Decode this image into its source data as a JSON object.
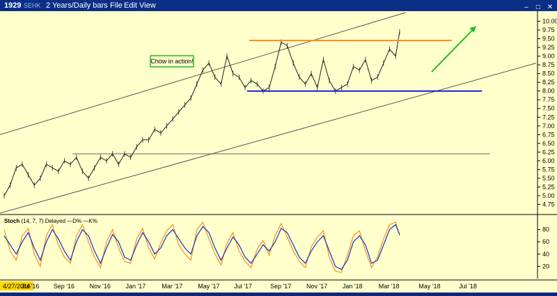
{
  "titlebar": {
    "symbol": "1929",
    "exchange": "SEHK",
    "period": "2 Years/Daily bars",
    "menus": [
      "File",
      "Edit",
      "View"
    ]
  },
  "window_controls": {
    "minimize": "–",
    "maximize": "□",
    "close": "✕"
  },
  "annotation": {
    "text": "Chow in action!"
  },
  "indicator": {
    "label": "Stoch",
    "params": "(14, 7, 7)",
    "delayed": "Delayed",
    "d_label": "D%",
    "k_label": "K%"
  },
  "colors": {
    "background": "#ffffcc",
    "price": "#1f1f1f",
    "resistance": "#ff8c1a",
    "support": "#1a1adb",
    "trend_arrow": "#22bb22",
    "channel": "#555555",
    "stoch_d": "#1133cc",
    "stoch_k": "#ff8c1a",
    "annotation_border": "#22bb22",
    "date_highlight": "#ffd800"
  },
  "chart_data": {
    "type": "line",
    "title": "",
    "x_labels": [
      "4/27/2016",
      "Jul '16",
      "Sep '16",
      "Nov '16",
      "Jan '17",
      "Mar '17",
      "May '17",
      "Jul '17",
      "Sep '17",
      "Nov '17",
      "Jan '18",
      "Mar '18",
      "May '18",
      "Jul '18"
    ],
    "price_axis": {
      "ylim": [
        4.5,
        10.25
      ],
      "ticks": [
        "10.00",
        "9.75",
        "9.50",
        "9.25",
        "9.00",
        "8.75",
        "8.50",
        "8.25",
        "8.00",
        "7.75",
        "7.50",
        "7.25",
        "7.00",
        "6.75",
        "6.50",
        "6.25",
        "6.00",
        "5.75",
        "5.50",
        "5.25",
        "5.00",
        "4.75"
      ]
    },
    "stoch_axis": {
      "ylim": [
        0,
        100
      ],
      "ticks": [
        "80",
        "60",
        "40",
        "20"
      ]
    },
    "levels": {
      "resistance": 9.45,
      "support": 8.0,
      "horizontal_line": 6.2
    },
    "series": [
      {
        "name": "Price",
        "points": [
          [
            0,
            5.0
          ],
          [
            3,
            5.3
          ],
          [
            6,
            5.8
          ],
          [
            9,
            5.9
          ],
          [
            12,
            5.6
          ],
          [
            15,
            5.3
          ],
          [
            18,
            5.5
          ],
          [
            21,
            5.9
          ],
          [
            24,
            5.8
          ],
          [
            27,
            5.7
          ],
          [
            30,
            6.0
          ],
          [
            33,
            5.9
          ],
          [
            36,
            6.1
          ],
          [
            39,
            5.7
          ],
          [
            42,
            5.5
          ],
          [
            45,
            5.8
          ],
          [
            48,
            6.1
          ],
          [
            51,
            6.0
          ],
          [
            54,
            6.2
          ],
          [
            57,
            5.9
          ],
          [
            60,
            6.2
          ],
          [
            63,
            6.1
          ],
          [
            66,
            6.4
          ],
          [
            69,
            6.6
          ],
          [
            72,
            6.6
          ],
          [
            75,
            6.9
          ],
          [
            78,
            6.8
          ],
          [
            81,
            7.0
          ],
          [
            84,
            7.2
          ],
          [
            87,
            7.4
          ],
          [
            90,
            7.6
          ],
          [
            93,
            7.8
          ],
          [
            96,
            8.2
          ],
          [
            99,
            8.6
          ],
          [
            102,
            8.8
          ],
          [
            105,
            8.4
          ],
          [
            108,
            8.2
          ],
          [
            111,
            9.0
          ],
          [
            114,
            8.5
          ],
          [
            117,
            8.4
          ],
          [
            120,
            8.1
          ],
          [
            123,
            8.3
          ],
          [
            126,
            8.2
          ],
          [
            129,
            8.0
          ],
          [
            132,
            8.1
          ],
          [
            135,
            8.7
          ],
          [
            138,
            9.4
          ],
          [
            141,
            9.3
          ],
          [
            144,
            8.8
          ],
          [
            147,
            8.4
          ],
          [
            150,
            8.2
          ],
          [
            153,
            8.5
          ],
          [
            156,
            8.1
          ],
          [
            159,
            8.9
          ],
          [
            162,
            8.3
          ],
          [
            165,
            8.0
          ],
          [
            168,
            8.1
          ],
          [
            171,
            8.2
          ],
          [
            174,
            8.7
          ],
          [
            177,
            8.6
          ],
          [
            180,
            8.9
          ],
          [
            183,
            8.3
          ],
          [
            186,
            8.4
          ],
          [
            189,
            8.8
          ],
          [
            192,
            9.2
          ],
          [
            195,
            9.0
          ],
          [
            197,
            9.7
          ]
        ]
      },
      {
        "name": "D%",
        "points": [
          [
            0,
            70
          ],
          [
            3,
            55
          ],
          [
            6,
            40
          ],
          [
            9,
            60
          ],
          [
            12,
            75
          ],
          [
            15,
            50
          ],
          [
            18,
            30
          ],
          [
            21,
            60
          ],
          [
            24,
            80
          ],
          [
            27,
            65
          ],
          [
            30,
            45
          ],
          [
            33,
            30
          ],
          [
            36,
            60
          ],
          [
            39,
            80
          ],
          [
            42,
            70
          ],
          [
            45,
            45
          ],
          [
            48,
            25
          ],
          [
            51,
            50
          ],
          [
            54,
            72
          ],
          [
            57,
            60
          ],
          [
            60,
            35
          ],
          [
            63,
            30
          ],
          [
            66,
            55
          ],
          [
            69,
            75
          ],
          [
            72,
            60
          ],
          [
            75,
            40
          ],
          [
            78,
            50
          ],
          [
            81,
            70
          ],
          [
            84,
            80
          ],
          [
            87,
            65
          ],
          [
            90,
            50
          ],
          [
            93,
            40
          ],
          [
            96,
            70
          ],
          [
            99,
            85
          ],
          [
            102,
            75
          ],
          [
            105,
            50
          ],
          [
            108,
            30
          ],
          [
            111,
            50
          ],
          [
            114,
            68
          ],
          [
            117,
            55
          ],
          [
            120,
            35
          ],
          [
            123,
            25
          ],
          [
            126,
            40
          ],
          [
            129,
            55
          ],
          [
            132,
            45
          ],
          [
            135,
            60
          ],
          [
            138,
            82
          ],
          [
            141,
            75
          ],
          [
            144,
            55
          ],
          [
            147,
            35
          ],
          [
            150,
            25
          ],
          [
            153,
            45
          ],
          [
            156,
            60
          ],
          [
            159,
            70
          ],
          [
            162,
            45
          ],
          [
            165,
            20
          ],
          [
            168,
            15
          ],
          [
            171,
            30
          ],
          [
            174,
            60
          ],
          [
            177,
            70
          ],
          [
            180,
            55
          ],
          [
            183,
            25
          ],
          [
            186,
            30
          ],
          [
            189,
            55
          ],
          [
            192,
            80
          ],
          [
            195,
            88
          ],
          [
            197,
            72
          ]
        ]
      },
      {
        "name": "K%",
        "points": [
          [
            0,
            80
          ],
          [
            3,
            45
          ],
          [
            6,
            30
          ],
          [
            9,
            70
          ],
          [
            12,
            82
          ],
          [
            15,
            40
          ],
          [
            18,
            20
          ],
          [
            21,
            70
          ],
          [
            24,
            88
          ],
          [
            27,
            55
          ],
          [
            30,
            35
          ],
          [
            33,
            25
          ],
          [
            36,
            70
          ],
          [
            39,
            88
          ],
          [
            42,
            60
          ],
          [
            45,
            35
          ],
          [
            48,
            18
          ],
          [
            51,
            60
          ],
          [
            54,
            80
          ],
          [
            57,
            50
          ],
          [
            60,
            28
          ],
          [
            63,
            25
          ],
          [
            66,
            65
          ],
          [
            69,
            82
          ],
          [
            72,
            50
          ],
          [
            75,
            32
          ],
          [
            78,
            58
          ],
          [
            81,
            78
          ],
          [
            84,
            88
          ],
          [
            87,
            55
          ],
          [
            90,
            40
          ],
          [
            93,
            30
          ],
          [
            96,
            80
          ],
          [
            99,
            92
          ],
          [
            102,
            65
          ],
          [
            105,
            40
          ],
          [
            108,
            22
          ],
          [
            111,
            58
          ],
          [
            114,
            75
          ],
          [
            117,
            45
          ],
          [
            120,
            28
          ],
          [
            123,
            18
          ],
          [
            126,
            48
          ],
          [
            129,
            62
          ],
          [
            132,
            38
          ],
          [
            135,
            70
          ],
          [
            138,
            90
          ],
          [
            141,
            68
          ],
          [
            144,
            45
          ],
          [
            147,
            28
          ],
          [
            150,
            18
          ],
          [
            153,
            52
          ],
          [
            156,
            68
          ],
          [
            159,
            78
          ],
          [
            162,
            35
          ],
          [
            165,
            12
          ],
          [
            168,
            10
          ],
          [
            171,
            38
          ],
          [
            174,
            70
          ],
          [
            177,
            78
          ],
          [
            180,
            45
          ],
          [
            183,
            18
          ],
          [
            186,
            35
          ],
          [
            189,
            65
          ],
          [
            192,
            88
          ],
          [
            195,
            92
          ],
          [
            197,
            70
          ]
        ]
      }
    ]
  }
}
